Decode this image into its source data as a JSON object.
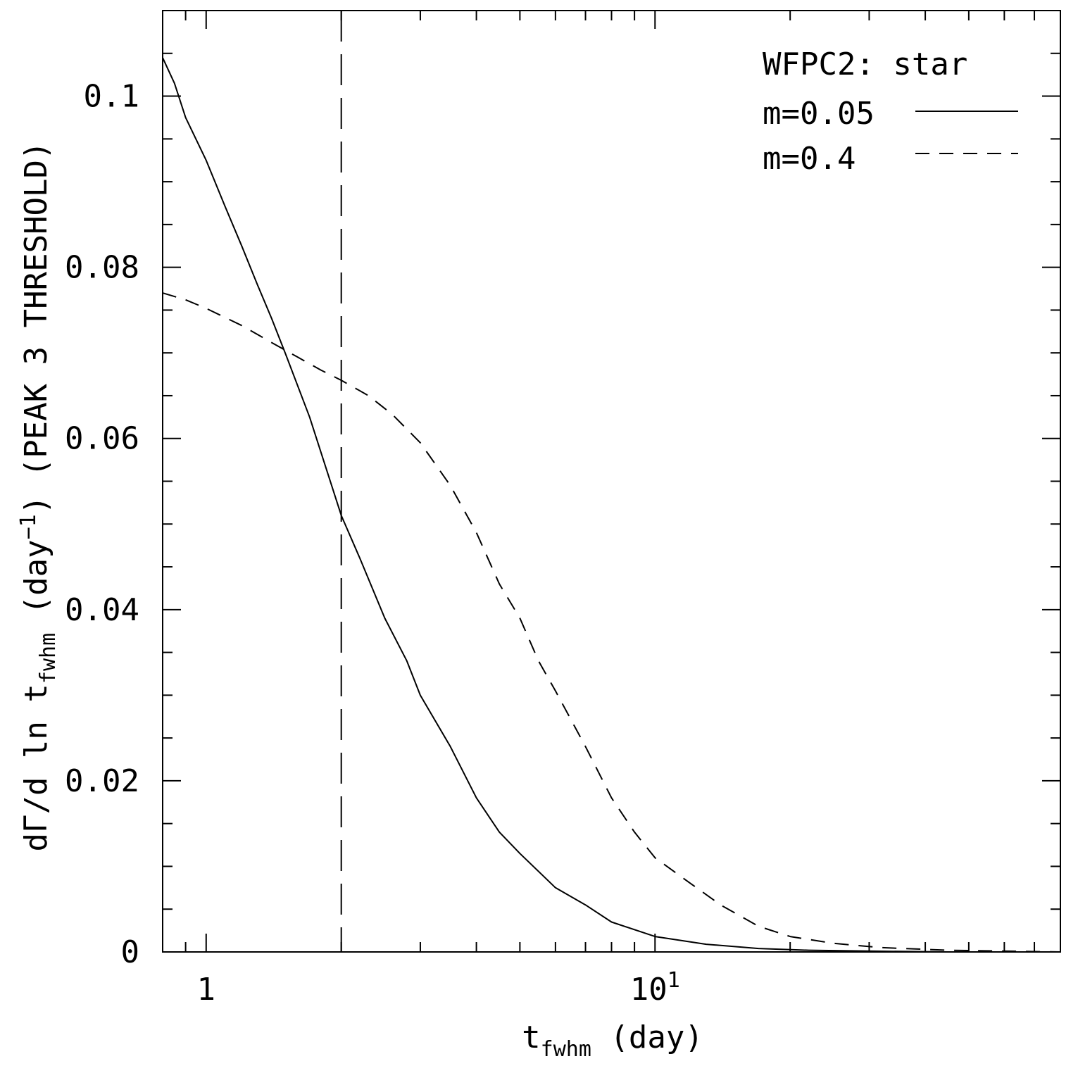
{
  "chart_data": {
    "type": "line",
    "xscale": "log",
    "xlabel": "t_fwhm (day)",
    "xlabel_parts": {
      "main": "t",
      "sub": "fwhm",
      "rest": " (day)"
    },
    "ylabel_parts": {
      "pre": "dΓ/d ln t",
      "sub": "fwhm",
      "mid": " (day",
      "sup": "−1",
      "post": ") (PEAK 3 THRESHOLD)"
    },
    "xlim": [
      0.8,
      80
    ],
    "ylim": [
      0,
      0.11
    ],
    "x_major_ticks": [
      {
        "value": 1,
        "label": "1",
        "sup": ""
      },
      {
        "value": 10,
        "label": "10",
        "sup": "1"
      }
    ],
    "x_minor_ticks": [
      0.8,
      0.9,
      2,
      3,
      4,
      5,
      6,
      7,
      8,
      9,
      20,
      30,
      40,
      50,
      60,
      70,
      80
    ],
    "y_major_ticks": [
      {
        "value": 0,
        "label": "0"
      },
      {
        "value": 0.02,
        "label": "0.02"
      },
      {
        "value": 0.04,
        "label": "0.04"
      },
      {
        "value": 0.06,
        "label": "0.06"
      },
      {
        "value": 0.08,
        "label": "0.08"
      },
      {
        "value": 0.1,
        "label": "0.1"
      }
    ],
    "y_minor_step": 0.005,
    "vertical_reference_line": {
      "x": 2,
      "style": "long-dash"
    },
    "legend": {
      "title": "WFPC2: star",
      "position": "top-right"
    },
    "series": [
      {
        "name": "m=0.05",
        "style": "solid",
        "points": [
          [
            0.8,
            0.1045
          ],
          [
            0.85,
            0.1015
          ],
          [
            0.9,
            0.0975
          ],
          [
            1.0,
            0.0925
          ],
          [
            1.1,
            0.0872
          ],
          [
            1.2,
            0.0825
          ],
          [
            1.3,
            0.078
          ],
          [
            1.4,
            0.074
          ],
          [
            1.5,
            0.07
          ],
          [
            1.7,
            0.0625
          ],
          [
            2.0,
            0.051
          ],
          [
            2.2,
            0.046
          ],
          [
            2.5,
            0.039
          ],
          [
            2.8,
            0.034
          ],
          [
            3.0,
            0.03
          ],
          [
            3.5,
            0.024
          ],
          [
            4.0,
            0.018
          ],
          [
            4.5,
            0.014
          ],
          [
            5.0,
            0.0115
          ],
          [
            6.0,
            0.0075
          ],
          [
            7.0,
            0.0055
          ],
          [
            8.0,
            0.0035
          ],
          [
            10.0,
            0.0018
          ],
          [
            13.0,
            0.0009
          ],
          [
            17.0,
            0.0004
          ],
          [
            22.0,
            0.0002
          ],
          [
            30.0,
            0.0001
          ],
          [
            45.0,
            0.0
          ],
          [
            80.0,
            0.0
          ]
        ]
      },
      {
        "name": "m=0.4",
        "style": "dashed",
        "points": [
          [
            0.8,
            0.077
          ],
          [
            0.9,
            0.0762
          ],
          [
            1.0,
            0.0752
          ],
          [
            1.2,
            0.0732
          ],
          [
            1.4,
            0.0712
          ],
          [
            1.6,
            0.0695
          ],
          [
            1.8,
            0.068
          ],
          [
            2.0,
            0.0668
          ],
          [
            2.3,
            0.065
          ],
          [
            2.6,
            0.0628
          ],
          [
            3.0,
            0.0595
          ],
          [
            3.5,
            0.0545
          ],
          [
            4.0,
            0.049
          ],
          [
            4.5,
            0.043
          ],
          [
            5.0,
            0.039
          ],
          [
            5.5,
            0.034
          ],
          [
            6.0,
            0.0305
          ],
          [
            7.0,
            0.024
          ],
          [
            8.0,
            0.018
          ],
          [
            9.0,
            0.014
          ],
          [
            10.0,
            0.011
          ],
          [
            12.0,
            0.008
          ],
          [
            14.0,
            0.0055
          ],
          [
            17.0,
            0.003
          ],
          [
            20.0,
            0.0018
          ],
          [
            25.0,
            0.001
          ],
          [
            32.0,
            0.0005
          ],
          [
            45.0,
            0.0002
          ],
          [
            80.0,
            0.0
          ]
        ]
      }
    ]
  }
}
